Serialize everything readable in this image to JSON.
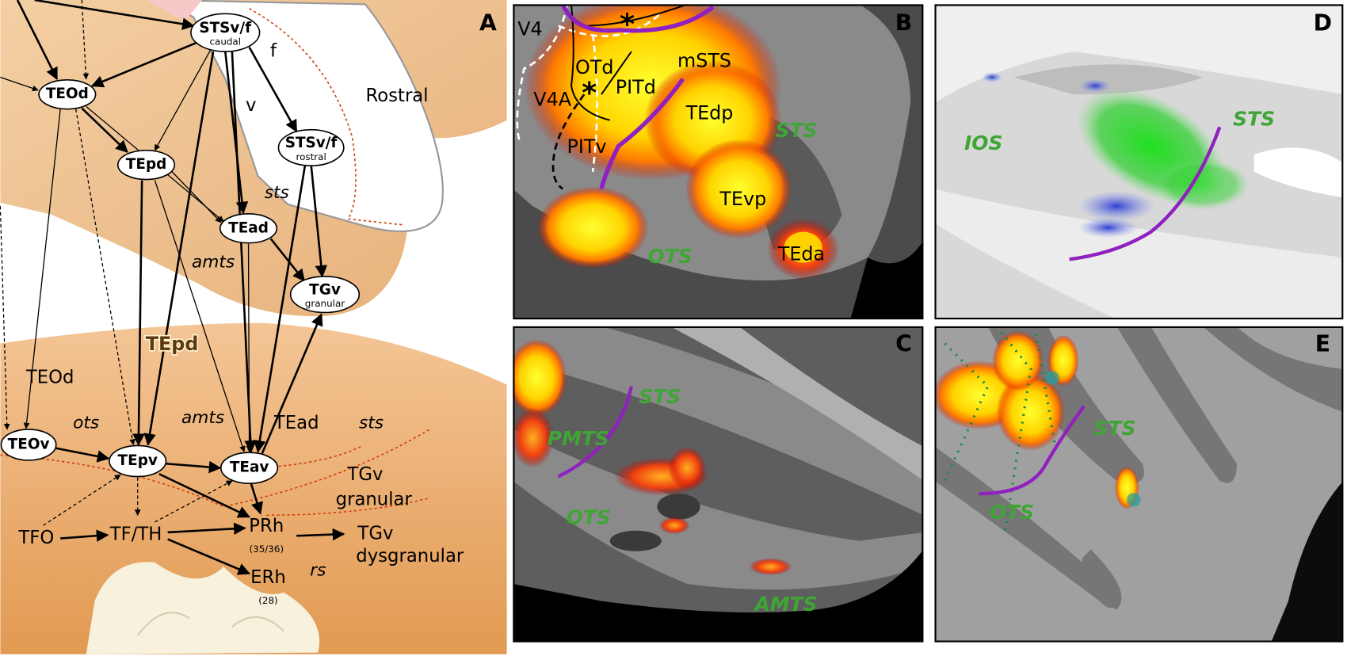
{
  "panel_a": {
    "label": "A",
    "nodes": [
      {
        "name": "STSv/f",
        "sub": "caudal"
      },
      {
        "name": "TEOd"
      },
      {
        "name": "TEpd"
      },
      {
        "name": "TEad"
      },
      {
        "name": "STSv/f",
        "sub": "rostral"
      },
      {
        "name": "TGv",
        "sub": "granular"
      },
      {
        "name": "TEOv"
      },
      {
        "name": "TEpv"
      },
      {
        "name": "TEav"
      }
    ],
    "labels": [
      "f",
      "v",
      "Rostral",
      "sts",
      "amts",
      "TEOd",
      "TEpd",
      "ots",
      "amts",
      "TEad",
      "sts",
      "TGv",
      "granular",
      "TFO",
      "TF/TH",
      "PRh",
      "(35/36)",
      "TGv",
      "dysgranular",
      "rs",
      "ERh",
      "(28)"
    ]
  },
  "panel_b": {
    "label": "B",
    "labels": [
      "V4",
      "OTd",
      "PITd",
      "mSTS",
      "V4A",
      "TEdp",
      "STS",
      "PITv",
      "TEvp",
      "OTS",
      "TEda"
    ]
  },
  "panel_c": {
    "label": "C",
    "labels": [
      "STS",
      "PMTS",
      "OTS",
      "AMTS"
    ]
  },
  "panel_d": {
    "label": "D",
    "labels": [
      "IOS",
      "STS"
    ]
  },
  "panel_e": {
    "label": "E",
    "labels": [
      "STS",
      "OTS"
    ]
  }
}
